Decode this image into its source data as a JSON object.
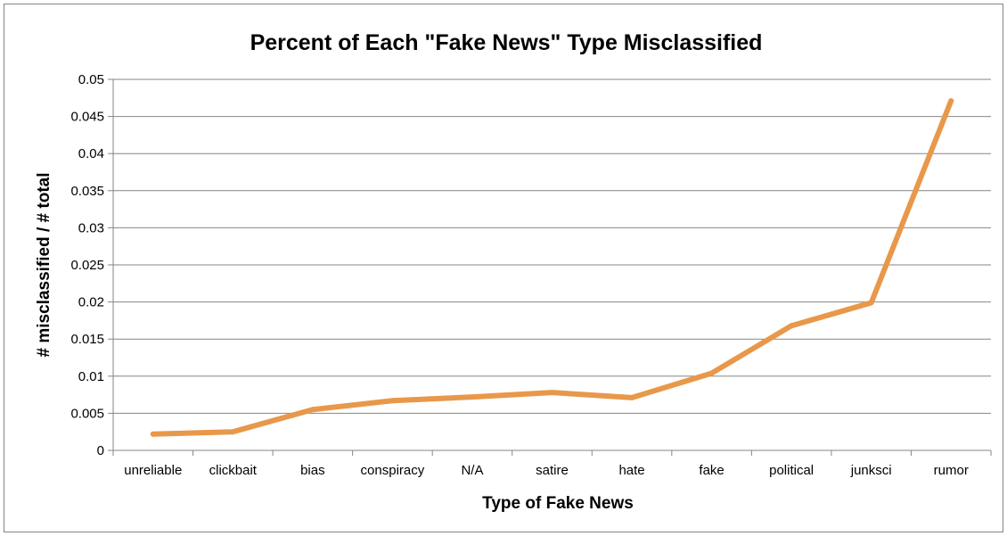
{
  "chart_data": {
    "type": "line",
    "title": "Percent of Each \"Fake News\" Type Misclassified",
    "xlabel": "Type of Fake News",
    "ylabel": "# misclassified / # total",
    "categories": [
      "unreliable",
      "clickbait",
      "bias",
      "conspiracy",
      "N/A",
      "satire",
      "hate",
      "fake",
      "political",
      "junksci",
      "rumor"
    ],
    "series": [
      {
        "values": [
          0.0022,
          0.0025,
          0.0055,
          0.0067,
          0.0072,
          0.0078,
          0.0071,
          0.0104,
          0.0168,
          0.0199,
          0.0471
        ],
        "color": "#E8984A"
      }
    ],
    "ylim": [
      0,
      0.05
    ],
    "yticks": [
      "0",
      "0.005",
      "0.01",
      "0.015",
      "0.02",
      "0.025",
      "0.03",
      "0.035",
      "0.04",
      "0.045",
      "0.05"
    ],
    "grid": true,
    "legend": "none"
  }
}
